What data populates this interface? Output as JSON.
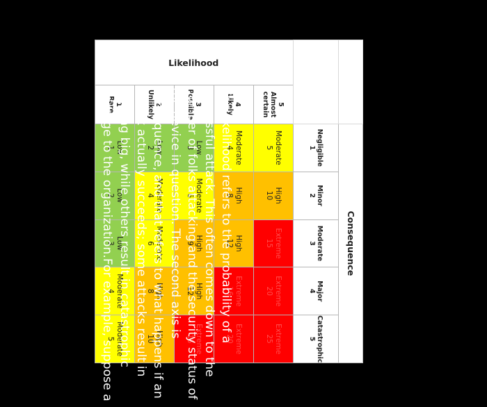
{
  "matrix": {
    "consequence_title": "Consequence",
    "likelihood_title": "Likelihood",
    "consequence_levels": [
      {
        "name": "Negligible",
        "num": "1"
      },
      {
        "name": "Minor",
        "num": "2"
      },
      {
        "name": "Moderate",
        "num": "3"
      },
      {
        "name": "Major",
        "num": "4"
      },
      {
        "name": "Catastrophic",
        "num": "5"
      }
    ],
    "likelihood_levels": [
      {
        "name": "Almost certain",
        "num": "5"
      },
      {
        "name": "Likely",
        "num": "4"
      },
      {
        "name": "Possible",
        "num": "3"
      },
      {
        "name": "Unlikely",
        "num": "2"
      },
      {
        "name": "Rare",
        "num": "1"
      }
    ],
    "rows": [
      [
        {
          "label": "Moderate",
          "score": "5"
        },
        {
          "label": "High",
          "score": "10"
        },
        {
          "label": "Extreme",
          "score": "15"
        },
        {
          "label": "Extreme",
          "score": "20"
        },
        {
          "label": "Extreme",
          "score": "25"
        }
      ],
      [
        {
          "label": "Moderate",
          "score": "4"
        },
        {
          "label": "High",
          "score": "8"
        },
        {
          "label": "High",
          "score": "12"
        },
        {
          "label": "Extreme",
          "score": "16"
        },
        {
          "label": "Extreme",
          "score": "20"
        }
      ],
      [
        {
          "label": "Low",
          "score": "3"
        },
        {
          "label": "Moderate",
          "score": "6"
        },
        {
          "label": "High",
          "score": "9"
        },
        {
          "label": "High",
          "score": "12"
        },
        {
          "label": "Extreme",
          "score": "15"
        }
      ],
      [
        {
          "label": "Low",
          "score": "2"
        },
        {
          "label": "Moderate",
          "score": "4"
        },
        {
          "label": "Moderate",
          "score": "6"
        },
        {
          "label": "High",
          "score": "8"
        },
        {
          "label": "High",
          "score": "10"
        }
      ],
      [
        {
          "label": "Low",
          "score": "1"
        },
        {
          "label": "Low",
          "score": "2"
        },
        {
          "label": "Low",
          "score": "3"
        },
        {
          "label": "Moderate",
          "score": "4"
        },
        {
          "label": "Moderate",
          "score": "5"
        }
      ]
    ],
    "colors": {
      "Low": "#92d050",
      "Moderate": "#ffff00",
      "High": "#ffc000",
      "Extreme": "#ff0000"
    }
  },
  "paragraph": "The likelihood refers to the probability of a successful attack. This often comes down to the number of folks attacking and the security status of the device in question. The second axis is consequence, and that refers to what happens if an attack actually succeeds; some attacks result in nothing big, while others result in catastrophic damage to the organization.For example, suppose a"
}
